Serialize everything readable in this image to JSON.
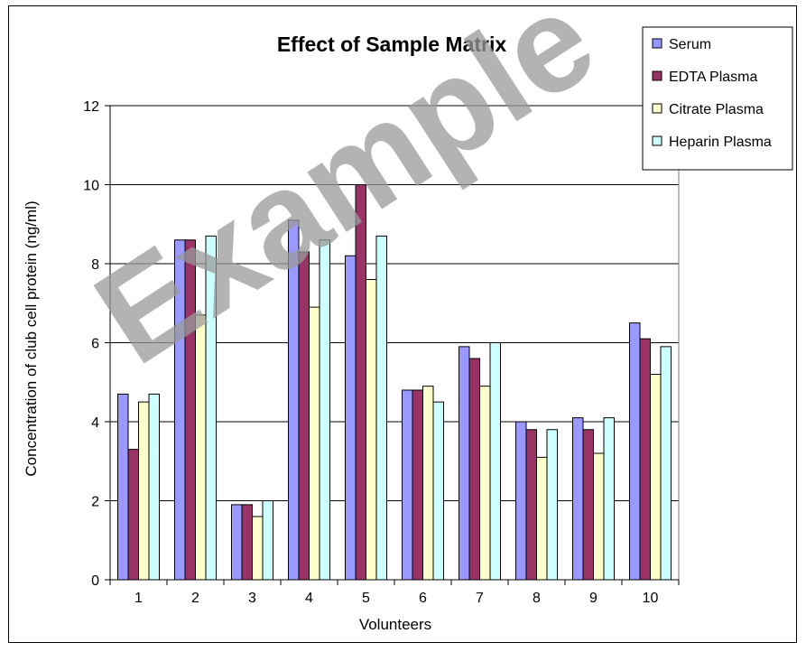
{
  "chart_data": {
    "type": "bar",
    "title": "Effect of Sample Matrix",
    "xlabel": "Volunteers",
    "ylabel": "Concentration of club cell protein (ng/ml)",
    "categories": [
      "1",
      "2",
      "3",
      "4",
      "5",
      "6",
      "7",
      "8",
      "9",
      "10"
    ],
    "ylim": [
      0,
      12
    ],
    "yticks": [
      "0",
      "2",
      "4",
      "6",
      "8",
      "10",
      "12"
    ],
    "grid": true,
    "legend_position": "top-right",
    "series": [
      {
        "name": "Serum",
        "color": "#9999ff",
        "values": [
          4.7,
          8.6,
          1.9,
          9.1,
          8.2,
          4.8,
          5.9,
          4.0,
          4.1,
          6.5
        ]
      },
      {
        "name": "EDTA  Plasma",
        "color": "#993366",
        "values": [
          3.3,
          8.6,
          1.9,
          8.3,
          10.0,
          4.8,
          5.6,
          3.8,
          3.8,
          6.1
        ]
      },
      {
        "name": "Citrate  Plasma",
        "color": "#ffffcc",
        "values": [
          4.5,
          6.7,
          1.6,
          6.9,
          7.6,
          4.9,
          4.9,
          3.1,
          3.2,
          5.2
        ]
      },
      {
        "name": "Heparin Plasma",
        "color": "#ccffff",
        "values": [
          4.7,
          8.7,
          2.0,
          8.6,
          8.7,
          4.5,
          6.0,
          3.8,
          4.1,
          5.9
        ]
      }
    ],
    "watermark": "Example"
  }
}
